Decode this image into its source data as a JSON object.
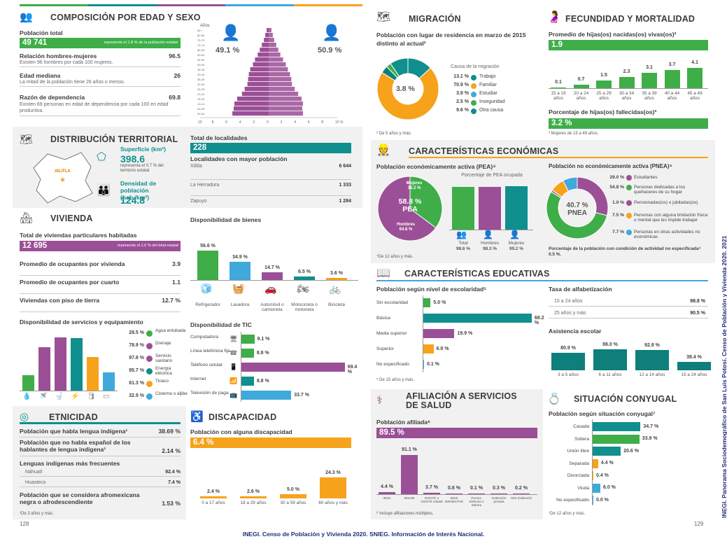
{
  "colors": {
    "green": "#3fae49",
    "purple": "#9b4f96",
    "teal": "#0f8f8d",
    "orange": "#f7a21b",
    "blue": "#3fa9db",
    "darkteal": "#0e7f7a",
    "gray": "#f1f1f1"
  },
  "comp": {
    "title": "COMPOSICIÓN POR EDAD Y SEXO",
    "pob_label": "Población total",
    "pob_value": "49 741",
    "pob_note": "represents el 1.8 % de la población estatal",
    "rel_label": "Relación hombres-mujeres",
    "rel_value": "96.5",
    "rel_desc": "Existen 96 hombres por cada 100 mujeres.",
    "edad_label": "Edad mediana",
    "edad_value": "26",
    "edad_desc": "La mitad de la población tiene 26 años o menos.",
    "dep_label": "Razón de dependencia",
    "dep_value": "69.8",
    "dep_desc": "Existen 69 personas en edad de dependencia por cada 100 en edad productiva.",
    "men": "49.1 %",
    "women": "50.9 %",
    "anos": "Años"
  },
  "pyr": {
    "ages": [
      "85 +",
      "80-84",
      "75-79",
      "70-74",
      "65-69",
      "60-64",
      "55-59",
      "50-54",
      "45-49",
      "40-44",
      "35-39",
      "30-34",
      "25-29",
      "20-24",
      "15-19",
      "10-14",
      "05-09",
      "00-04"
    ],
    "men": [
      0.3,
      0.5,
      0.7,
      1.0,
      1.3,
      1.6,
      2.0,
      2.3,
      2.7,
      2.9,
      3.0,
      3.1,
      3.5,
      3.9,
      4.6,
      5.0,
      5.1,
      5.3
    ],
    "women": [
      0.4,
      0.6,
      0.8,
      1.1,
      1.4,
      1.7,
      2.1,
      2.5,
      2.8,
      3.1,
      3.3,
      3.4,
      3.8,
      4.3,
      4.8,
      5.0,
      4.9,
      5.0
    ],
    "ticks": [
      "10",
      "8",
      "6",
      "4",
      "2",
      "0",
      "2",
      "4",
      "6",
      "8",
      "10 %"
    ]
  },
  "dist": {
    "title": "DISTRIBUCIÓN TERRITORIAL",
    "sup_label": "Superficie (km²)",
    "sup_value": "398.6",
    "sup_note": "representa el 0.7 % del territorio estatal",
    "den_label": "Densidad de población (hab./km²)",
    "den_value": "124.8",
    "map_label": "XILITLA",
    "loc_label": "Total de localidades",
    "loc_value": "228",
    "may_label": "Localidades con mayor población",
    "locs": [
      {
        "name": "Xilitla",
        "value": "6 644"
      },
      {
        "name": "La Herradura",
        "value": "1 333"
      },
      {
        "name": "Zapuyo",
        "value": "1 284"
      }
    ]
  },
  "viv": {
    "title": "VIVIENDA",
    "total_label": "Total de viviendas particulares habitadas",
    "total_value": "12 695",
    "total_note": "represents el 1.6 % del total estatal",
    "rows": [
      {
        "label": "Promedio de ocupantes por vivienda",
        "value": "3.9"
      },
      {
        "label": "Promedio de ocupantes por cuarto",
        "value": "1.1"
      },
      {
        "label": "Viviendas con piso de tierra",
        "value": "12.7 %"
      }
    ],
    "bienes_title": "Disponibilidad de bienes",
    "bienes": [
      {
        "name": "Refrigerador",
        "value": 56.6,
        "label": "56.6 %"
      },
      {
        "name": "Lavadora",
        "value": 34.9,
        "label": "34.9 %"
      },
      {
        "name": "Automóvil o camioneta",
        "value": 14.7,
        "label": "14.7 %"
      },
      {
        "name": "Motocicleta o motoneta",
        "value": 6.5,
        "label": "6.5 %"
      },
      {
        "name": "Bicicleta",
        "value": 3.6,
        "label": "3.6 %"
      }
    ],
    "serv_title": "Disponibilidad de servicios y equipamiento",
    "serv": [
      {
        "name": "Agua entubada",
        "value": 28.5,
        "label": "28.5 %"
      },
      {
        "name": "Drenaje",
        "value": 78.9,
        "label": "78.9 %"
      },
      {
        "name": "Servicio sanitario",
        "value": 97.8,
        "label": "97.8 %"
      },
      {
        "name": "Energía eléctrica",
        "value": 95.7,
        "label": "95.7 %"
      },
      {
        "name": "Tinaco",
        "value": 61.3,
        "label": "61.3 %"
      },
      {
        "name": "Cisterna o aljibe",
        "value": 32.9,
        "label": "32.9 %"
      }
    ],
    "tic_title": "Disponibilidad de TIC",
    "tic": [
      {
        "name": "Computadora",
        "value": 9.1,
        "label": "9.1 %"
      },
      {
        "name": "Línea telefónica fija",
        "value": 8.8,
        "label": "8.8 %"
      },
      {
        "name": "Teléfono celular",
        "value": 69.4,
        "label": "69.4 %"
      },
      {
        "name": "Internet",
        "value": 8.8,
        "label": "8.8 %"
      },
      {
        "name": "Televisión de paga",
        "value": 33.7,
        "label": "33.7 %"
      }
    ]
  },
  "etn": {
    "title": "ETNICIDAD",
    "r1_label": "Población que habla lengua indígena¹",
    "r1_value": "38.69 %",
    "r2_label": "Población que no habla español de los hablantes de lengua indígena¹",
    "r2_value": "2.14 %",
    "lenguas_title": "Lenguas indígenas más frecuentes",
    "lenguas": [
      {
        "name": "Náhuatl",
        "value": "92.4 %"
      },
      {
        "name": "Huasteco",
        "value": "7.4 %"
      }
    ],
    "afro_label": "Población que se considera afromexicana negra o afrodescendiente",
    "afro_value": "1.53 %",
    "note": "¹De 3 años y más."
  },
  "disc": {
    "title": "DISCAPACIDAD",
    "label": "Población con alguna discapacidad",
    "value": "6.4 %",
    "bars": [
      {
        "name": "0 a 17 años",
        "value": 2.4,
        "label": "2.4 %"
      },
      {
        "name": "18 a 29 años",
        "value": 2.6,
        "label": "2.6 %"
      },
      {
        "name": "30 a 59 años",
        "value": 5.0,
        "label": "5.0 %"
      },
      {
        "name": "60 años y más",
        "value": 24.3,
        "label": "24.3 %"
      }
    ]
  },
  "mig": {
    "title": "MIGRACIÓN",
    "label": "Población con lugar de residencia en marzo de 2015 distinto al actual²",
    "center": "3.8 %",
    "causa": "Causa de la migración",
    "causes": [
      {
        "name": "Trabajo",
        "value": "13.1 %"
      },
      {
        "name": "Familiar",
        "value": "70.9 %"
      },
      {
        "name": "Estudiar",
        "value": "3.9 %"
      },
      {
        "name": "Inseguridad",
        "value": "2.5 %"
      },
      {
        "name": "Otra causa",
        "value": "9.6 %"
      }
    ],
    "note": "² De 5 años y más."
  },
  "fec": {
    "title": "FECUNDIDAD Y MORTALIDAD",
    "label": "Promedio de hijas(os) nacidas(os) vivas(os)³",
    "value": "1.9",
    "bars": [
      {
        "name": "15 a 19 años",
        "value": 0.1,
        "label": "0.1"
      },
      {
        "name": "20 a 24 años",
        "value": 0.7,
        "label": "0.7"
      },
      {
        "name": "25 a 29 años",
        "value": 1.5,
        "label": "1.5"
      },
      {
        "name": "30 a 34 años",
        "value": 2.3,
        "label": "2.3"
      },
      {
        "name": "35 a 39 años",
        "value": 3.1,
        "label": "3.1"
      },
      {
        "name": "40 a 44 años",
        "value": 3.7,
        "label": "3.7"
      },
      {
        "name": "45 a 49 años",
        "value": 4.1,
        "label": "4.1"
      }
    ],
    "fall_label": "Porcentaje de hijas(os) fallecidas(os)³",
    "fall_value": "3.2 %",
    "note": "³ Mujeres de 15 a 49 años."
  },
  "eco": {
    "title": "CARACTERÍSTICAS ECONÓMICAS",
    "pea_label": "Población económicamente activa (PEA)⁴",
    "pea_center": "58.8 %",
    "pea_center2": "PEA",
    "muj": "Mujeres",
    "muj_v": "35.2 %",
    "hom": "Hombres",
    "hom_v": "64.8 %",
    "ocup": "Porcentaje de PEA ocupada",
    "ocup_bars": [
      {
        "name": "Total",
        "value": 98.6,
        "label": "98.6 %"
      },
      {
        "name": "Hombres",
        "value": 98.3,
        "label": "98.3 %"
      },
      {
        "name": "Mujeres",
        "value": 99.2,
        "label": "99.2 %"
      }
    ],
    "pnea_label": "Población no económicamente activa (PNEA)⁴",
    "pnea_center": "40.7 %",
    "pnea_center2": "PNEA",
    "pnea_items": [
      {
        "name": "Estudiantes",
        "value": "29.0 %"
      },
      {
        "name": "Personas dedicadas a los quehaceres de su hogar",
        "value": "54.8 %"
      },
      {
        "name": "Pensionadas(os) o jubiladas(os)",
        "value": "1.0 %"
      },
      {
        "name": "Personas con alguna limitación física o mental que les impide trabajar",
        "value": "7.5 %"
      },
      {
        "name": "Personas en otras actividades no económicas",
        "value": "7.7 %"
      }
    ],
    "note": "⁴De 12 años y más.",
    "pnea_note": "Porcentaje de la población con condición de actividad no especificada⁴ 0.5 %."
  },
  "edu": {
    "title": "CARACTERÍSTICAS EDUCATIVAS",
    "esc_label": "Población según nivel de escolaridad⁵",
    "esc": [
      {
        "name": "Sin escolaridad",
        "value": 5.0,
        "label": "5.0 %"
      },
      {
        "name": "Básica",
        "value": 68.2,
        "label": "68.2 %"
      },
      {
        "name": "Media superior",
        "value": 19.9,
        "label": "19.9 %"
      },
      {
        "name": "Superior",
        "value": 6.8,
        "label": "6.8 %"
      },
      {
        "name": "No especificado",
        "value": 0.1,
        "label": "0.1 %"
      }
    ],
    "note": "⁵ De 15 años y más.",
    "alf_label": "Tasa de alfabetización",
    "alf": [
      {
        "name": "15 a 24 años",
        "value": "98.8 %"
      },
      {
        "name": "25 años y más",
        "value": "90.5 %"
      }
    ],
    "asis_label": "Asistencia escolar",
    "asis": [
      {
        "name": "3 a 5 años",
        "value": 80.9,
        "label": "80.9 %"
      },
      {
        "name": "6 a 11 años",
        "value": 98.0,
        "label": "98.0 %"
      },
      {
        "name": "12 a 14 años",
        "value": 92.8,
        "label": "92.8 %"
      },
      {
        "name": "15 a 24 años",
        "value": 38.4,
        "label": "38.4 %"
      }
    ]
  },
  "afi": {
    "title": "AFILIACIÓN A SERVICIOS DE SALUD",
    "label": "Población afiliada⁶",
    "value": "89.5 %",
    "bars": [
      {
        "name": "IMSS",
        "value": 4.4,
        "label": "4.4 %"
      },
      {
        "name": "INSABI",
        "value": 91.1,
        "label": "91.1 %"
      },
      {
        "name": "ISSSTE o ISSSTE estatal",
        "value": 3.7,
        "label": "3.7 %"
      },
      {
        "name": "IMSS BIENESTAR",
        "value": 0.8,
        "label": "0.8 %"
      },
      {
        "name": "Pemex, Defensa o Marina",
        "value": 0.1,
        "label": "0.1 %"
      },
      {
        "name": "Institución privada",
        "value": 0.3,
        "label": "0.3 %"
      },
      {
        "name": "Otra institución",
        "value": 0.2,
        "label": "0.2 %"
      }
    ],
    "note": "⁶ Incluye afiliaciones múltiples."
  },
  "conv": {
    "title": "SITUACIÓN CONYUGAL",
    "label": "Población según situación conyugal⁷",
    "bars": [
      {
        "name": "Casada",
        "value": 34.7,
        "label": "34.7 %"
      },
      {
        "name": "Soltera",
        "value": 33.9,
        "label": "33.9 %"
      },
      {
        "name": "Unión libre",
        "value": 20.6,
        "label": "20.6 %"
      },
      {
        "name": "Separada",
        "value": 4.4,
        "label": "4.4 %"
      },
      {
        "name": "Divorciada",
        "value": 0.4,
        "label": "0.4 %"
      },
      {
        "name": "Viuda",
        "value": 6.0,
        "label": "6.0 %"
      },
      {
        "name": "No especificado",
        "value": 0.0,
        "label": "0.0 %"
      }
    ],
    "note": "⁷De 12 años y más."
  },
  "footer": {
    "left_page": "128",
    "right_page": "129",
    "source": "INEGI. Censo de Población y Vivienda 2020. SNIEG. Información de Interés Nacional.",
    "side": "INEGI. Panorama Sociodemográfico de San Luis Potosí. Censo de Población y Vivienda 2020. 2021"
  }
}
